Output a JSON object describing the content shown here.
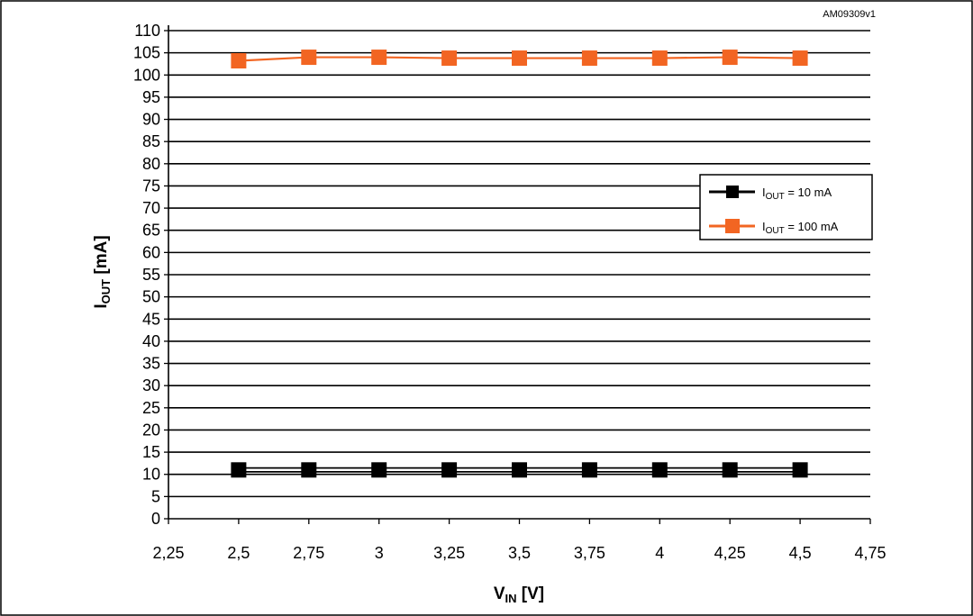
{
  "figure_code": "AM09309v1",
  "chart_data": {
    "type": "line",
    "xlabel": "V",
    "xlabel_sub": "IN",
    "xlabel_unit": " [V]",
    "ylabel": "I",
    "ylabel_sub": "OUT",
    "ylabel_unit": " [mA]",
    "xlim": [
      2.25,
      4.75
    ],
    "ylim": [
      0,
      110
    ],
    "x_ticks": [
      2.25,
      2.5,
      2.75,
      3,
      3.25,
      3.5,
      3.75,
      4,
      4.25,
      4.5,
      4.75
    ],
    "x_tick_labels": [
      "2,25",
      "2,5",
      "2,75",
      "3",
      "3,25",
      "3,5",
      "3,75",
      "4",
      "4,25",
      "4,5",
      "4,75"
    ],
    "y_ticks": [
      0,
      5,
      10,
      15,
      20,
      25,
      30,
      35,
      40,
      45,
      50,
      55,
      60,
      65,
      70,
      75,
      80,
      85,
      90,
      95,
      100,
      105,
      110
    ],
    "grid": true,
    "legend_position": "right",
    "series": [
      {
        "name": "I",
        "name_sub": "OUT",
        "name_rest": " = 10 mA",
        "color": "#000000",
        "x": [
          2.5,
          2.75,
          3,
          3.25,
          3.5,
          3.75,
          4,
          4.25,
          4.5
        ],
        "y": [
          11,
          11,
          11,
          11,
          11,
          11,
          11,
          11,
          11
        ]
      },
      {
        "name": "I",
        "name_sub": "OUT",
        "name_rest": " = 100 mA",
        "color": "#f26522",
        "x": [
          2.5,
          2.75,
          3,
          3.25,
          3.5,
          3.75,
          4,
          4.25,
          4.5
        ],
        "y": [
          103.2,
          104,
          104,
          103.8,
          103.8,
          103.8,
          103.8,
          104,
          103.8
        ]
      }
    ]
  }
}
